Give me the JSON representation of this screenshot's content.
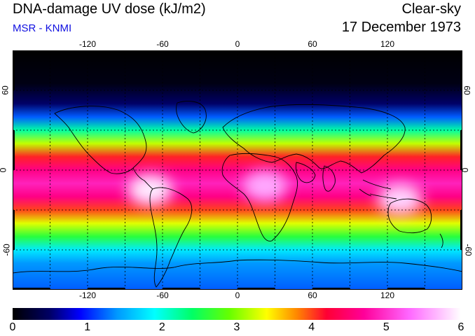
{
  "header": {
    "title": "DNA-damage UV dose (kJ/m2)",
    "subtitle": "MSR - KNMI",
    "condition": "Clear-sky",
    "date": "17 December 1973"
  },
  "map": {
    "longitude_ticks": [
      "-120",
      "-60",
      "0",
      "60",
      "120"
    ],
    "longitude_values": [
      -120,
      -60,
      0,
      60,
      120
    ],
    "latitude_ticks": [
      "60",
      "0",
      "-60"
    ],
    "latitude_values": [
      60,
      0,
      -60
    ],
    "lon_range": [
      -180,
      180
    ],
    "lat_range": [
      -90,
      90
    ],
    "grid_lines": "dotted",
    "field": {
      "variable": "DNA-damage UV dose",
      "latitude_profile": [
        {
          "lat": 90,
          "dose": 0.0
        },
        {
          "lat": 65,
          "dose": 0.1
        },
        {
          "lat": 50,
          "dose": 0.5
        },
        {
          "lat": 40,
          "dose": 1.2
        },
        {
          "lat": 30,
          "dose": 2.2
        },
        {
          "lat": 20,
          "dose": 3.2
        },
        {
          "lat": 10,
          "dose": 4.1
        },
        {
          "lat": 0,
          "dose": 4.6
        },
        {
          "lat": -10,
          "dose": 4.9
        },
        {
          "lat": -20,
          "dose": 4.6
        },
        {
          "lat": -30,
          "dose": 4.0
        },
        {
          "lat": -40,
          "dose": 3.3
        },
        {
          "lat": -50,
          "dose": 2.6
        },
        {
          "lat": -60,
          "dose": 1.8
        },
        {
          "lat": -70,
          "dose": 1.4
        },
        {
          "lat": -90,
          "dose": 1.2
        }
      ],
      "hotspots": [
        {
          "name": "South America",
          "lon": -70,
          "lat": -15,
          "dose": 5.9
        },
        {
          "name": "Africa",
          "lon": 22,
          "lat": -12,
          "dose": 5.6
        },
        {
          "name": "Australia",
          "lon": 130,
          "lat": -22,
          "dose": 5.8
        }
      ]
    }
  },
  "colorbar": {
    "labels": [
      "0",
      "1",
      "2",
      "3",
      "4",
      "5",
      "6"
    ],
    "values": [
      0,
      1,
      2,
      3,
      4,
      5,
      6
    ],
    "stops": [
      {
        "v": 0.0,
        "color": "#000000"
      },
      {
        "v": 0.5,
        "color": "#000066"
      },
      {
        "v": 0.9,
        "color": "#0000ff"
      },
      {
        "v": 1.4,
        "color": "#0099ff"
      },
      {
        "v": 1.9,
        "color": "#00ffff"
      },
      {
        "v": 2.4,
        "color": "#00ff66"
      },
      {
        "v": 2.9,
        "color": "#66ff00"
      },
      {
        "v": 3.4,
        "color": "#ffff00"
      },
      {
        "v": 3.8,
        "color": "#ff8800"
      },
      {
        "v": 4.2,
        "color": "#ff0033"
      },
      {
        "v": 4.7,
        "color": "#ff0099"
      },
      {
        "v": 5.3,
        "color": "#ff66ff"
      },
      {
        "v": 6.0,
        "color": "#ffffff"
      }
    ]
  }
}
